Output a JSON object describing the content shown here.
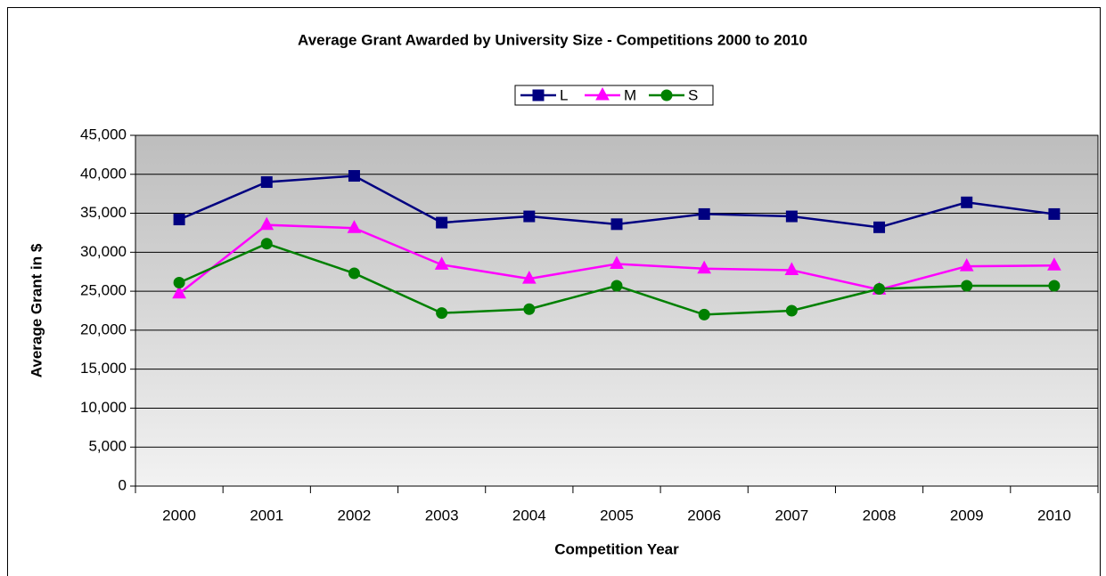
{
  "chart_data": {
    "type": "line",
    "title": "Average Grant Awarded by University Size - Competitions 2000 to 2010",
    "x_label": "Competition Year",
    "y_label": "Average Grant in $",
    "categories": [
      "2000",
      "2001",
      "2002",
      "2003",
      "2004",
      "2005",
      "2006",
      "2007",
      "2008",
      "2009",
      "2010"
    ],
    "series": [
      {
        "name": "L",
        "color": "#000080",
        "marker": "square",
        "values": [
          34200,
          39000,
          39800,
          33800,
          34600,
          33600,
          34900,
          34600,
          33200,
          36400,
          34900
        ]
      },
      {
        "name": "M",
        "color": "#ff00ff",
        "marker": "triangle",
        "values": [
          24700,
          33500,
          33100,
          28400,
          26600,
          28500,
          27900,
          27700,
          25200,
          28200,
          28300
        ]
      },
      {
        "name": "S",
        "color": "#008000",
        "marker": "circle",
        "values": [
          26100,
          31100,
          27300,
          22200,
          22700,
          25700,
          22000,
          22500,
          25300,
          25700,
          25700
        ]
      }
    ],
    "ylim": [
      0,
      45000
    ],
    "yticks": [
      0,
      {
        "value": 5000,
        "label": "5,000"
      },
      {
        "value": 10000,
        "label": "10,000"
      },
      {
        "value": 15000,
        "label": "15,000"
      },
      {
        "value": 20000,
        "label": "20,000"
      },
      {
        "value": 25000,
        "label": "25,000"
      },
      {
        "value": 30000,
        "label": "30,000"
      },
      {
        "value": 35000,
        "label": "35,000"
      },
      {
        "value": 40000,
        "label": "40,000"
      },
      {
        "value": 45000,
        "label": "45,000"
      }
    ],
    "grid": true,
    "legend": "top"
  }
}
